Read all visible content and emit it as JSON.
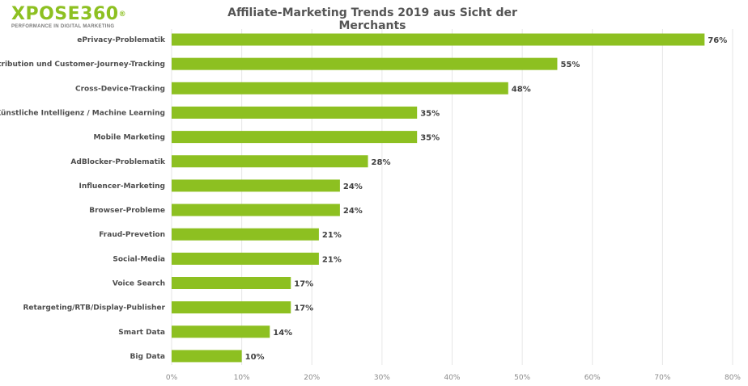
{
  "logo": {
    "text": "XPOSE360",
    "registered": "®",
    "tagline": "PERFORMANCE IN DIGITAL MARKETING"
  },
  "colors": {
    "bar": "#8dc021",
    "logo": "#8dc021"
  },
  "chart_data": {
    "type": "bar",
    "orientation": "horizontal",
    "title": "Affiliate-Marketing Trends 2019 aus Sicht der Merchants",
    "categories": [
      "ePrivacy-Problematik",
      "Attribution und Customer-Journey-Tracking",
      "Cross-Device-Tracking",
      "AI - Künstliche Intelligenz / Machine Learning",
      "Mobile Marketing",
      "AdBlocker-Problematik",
      "Influencer-Marketing",
      "Browser-Probleme",
      "Fraud-Prevetion",
      "Social-Media",
      "Voice Search",
      "Retargeting/RTB/Display-Publisher",
      "Smart Data",
      "Big Data"
    ],
    "values": [
      76,
      55,
      48,
      35,
      35,
      28,
      24,
      24,
      21,
      21,
      17,
      17,
      14,
      10
    ],
    "value_labels": [
      "76%",
      "55%",
      "48%",
      "35%",
      "35%",
      "28%",
      "24%",
      "24%",
      "21%",
      "21%",
      "17%",
      "17%",
      "14%",
      "10%"
    ],
    "xlim": [
      0,
      80
    ],
    "x_ticks": [
      0,
      10,
      20,
      30,
      40,
      50,
      60,
      70,
      80
    ],
    "x_tick_labels": [
      "0%",
      "10%",
      "20%",
      "30%",
      "40%",
      "50%",
      "60%",
      "70%",
      "80%"
    ],
    "grid": true,
    "legend": "none"
  }
}
